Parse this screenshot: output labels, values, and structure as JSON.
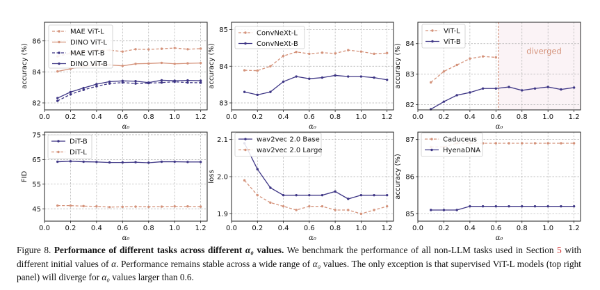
{
  "colors": {
    "orange": "#d4927a",
    "purple": "#3d3585",
    "diverged_shade": "#fbf3f6",
    "grid": "#b0b0b0"
  },
  "chart_data": [
    {
      "type": "line",
      "xlabel": "α₀",
      "ylabel": "accuracy (%)",
      "xlim": [
        0.0,
        1.25
      ],
      "ylim": [
        81.55,
        87.2
      ],
      "xticks": [
        "0.0",
        "0.2",
        "0.4",
        "0.6",
        "0.8",
        "1.0",
        "1.2"
      ],
      "yticks": [
        "82",
        "84",
        "86"
      ],
      "grid": true,
      "legend": "top-left",
      "x": [
        0.1,
        0.2,
        0.3,
        0.4,
        0.5,
        0.6,
        0.7,
        0.8,
        0.9,
        1.0,
        1.1,
        1.2
      ],
      "series": [
        {
          "name": "MAE ViT-L",
          "color": "orange",
          "style": "dashed",
          "values": [
            85.0,
            85.2,
            85.3,
            85.4,
            85.4,
            85.31,
            85.46,
            85.45,
            85.49,
            85.54,
            85.46,
            85.5
          ]
        },
        {
          "name": "DINO ViT-L",
          "color": "orange",
          "style": "solid",
          "values": [
            84.03,
            84.2,
            84.35,
            84.45,
            84.45,
            84.39,
            84.52,
            84.54,
            84.58,
            84.52,
            84.55,
            84.57
          ]
        },
        {
          "name": "MAE ViT-B",
          "color": "purple",
          "style": "dashed",
          "values": [
            82.13,
            82.55,
            82.84,
            83.07,
            83.25,
            83.31,
            83.25,
            83.27,
            83.31,
            83.36,
            83.31,
            83.3
          ]
        },
        {
          "name": "DINO ViT-B",
          "color": "purple",
          "style": "solid",
          "values": [
            82.31,
            82.7,
            82.96,
            83.21,
            83.37,
            83.42,
            83.4,
            83.31,
            83.46,
            83.43,
            83.45,
            83.43
          ]
        }
      ]
    },
    {
      "type": "line",
      "xlabel": "α₀",
      "ylabel": "accuracy (%)",
      "xlim": [
        0.0,
        1.25
      ],
      "ylim": [
        82.81,
        85.2
      ],
      "xticks": [
        "0.0",
        "0.2",
        "0.4",
        "0.6",
        "0.8",
        "1.0",
        "1.2"
      ],
      "yticks": [
        "83",
        "84",
        "85"
      ],
      "grid": true,
      "legend": "top-left",
      "x": [
        0.1,
        0.2,
        0.3,
        0.4,
        0.5,
        0.6,
        0.7,
        0.8,
        0.9,
        1.0,
        1.1,
        1.2
      ],
      "series": [
        {
          "name": "ConvNeXt-L",
          "color": "orange",
          "style": "dashed",
          "values": [
            83.89,
            83.88,
            84.0,
            84.28,
            84.39,
            84.34,
            84.37,
            84.35,
            84.44,
            84.4,
            84.34,
            84.36
          ]
        },
        {
          "name": "ConvNeXt-B",
          "color": "purple",
          "style": "solid",
          "values": [
            83.3,
            83.22,
            83.3,
            83.58,
            83.72,
            83.66,
            83.69,
            83.75,
            83.72,
            83.72,
            83.69,
            83.63
          ]
        }
      ]
    },
    {
      "type": "line",
      "xlabel": "α₀",
      "ylabel": "accuracy (%)",
      "xlim": [
        0.0,
        1.25
      ],
      "ylim": [
        81.83,
        84.7
      ],
      "xticks": [
        "0.0",
        "0.2",
        "0.4",
        "0.6",
        "0.8",
        "1.0",
        "1.2"
      ],
      "yticks": [
        "82",
        "83",
        "84"
      ],
      "grid": true,
      "legend": "top-left",
      "x": [
        0.1,
        0.2,
        0.3,
        0.4,
        0.5,
        0.6,
        0.7,
        0.8,
        0.9,
        1.0,
        1.1,
        1.2
      ],
      "series": [
        {
          "name": "ViT-L",
          "color": "orange",
          "style": "dashed",
          "values": [
            82.73,
            83.09,
            83.3,
            83.51,
            83.58,
            83.55,
            null,
            null,
            null,
            null,
            null,
            null
          ]
        },
        {
          "name": "ViT-B",
          "color": "purple",
          "style": "solid",
          "values": [
            81.85,
            82.1,
            82.31,
            82.4,
            82.53,
            82.53,
            82.58,
            82.47,
            82.53,
            82.58,
            82.5,
            82.56
          ]
        }
      ],
      "divergence": {
        "x": 0.62,
        "label": "diverged",
        "label_x": 0.97,
        "label_y": 83.75
      }
    },
    {
      "type": "line",
      "xlabel": "α₀",
      "ylabel": "FID",
      "xlim": [
        0.0,
        1.25
      ],
      "ylim": [
        40.0,
        76.1
      ],
      "xticks": [
        "0.0",
        "0.2",
        "0.4",
        "0.6",
        "0.8",
        "1.0",
        "1.2"
      ],
      "yticks": [
        "45",
        "55",
        "65",
        "75"
      ],
      "grid": true,
      "legend": "top-left",
      "x": [
        0.1,
        0.2,
        0.3,
        0.4,
        0.5,
        0.6,
        0.7,
        0.8,
        0.9,
        1.0,
        1.1,
        1.2
      ],
      "series": [
        {
          "name": "DiT-B",
          "color": "purple",
          "style": "solid",
          "values": [
            64.1,
            64.3,
            64.1,
            64.0,
            63.8,
            63.8,
            63.9,
            63.7,
            64.1,
            64.1,
            64.0,
            64.0
          ]
        },
        {
          "name": "DiT-L",
          "color": "orange",
          "style": "dashed",
          "values": [
            46.3,
            46.3,
            46.1,
            46.0,
            45.7,
            45.8,
            45.9,
            45.8,
            45.9,
            46.0,
            46.0,
            45.9
          ]
        }
      ]
    },
    {
      "type": "line",
      "xlabel": "α₀",
      "ylabel": "loss",
      "xlim": [
        0.0,
        1.25
      ],
      "ylim": [
        1.88,
        2.12
      ],
      "xticks": [
        "0.0",
        "0.2",
        "0.4",
        "0.6",
        "0.8",
        "1.0",
        "1.2"
      ],
      "yticks": [
        "1.9",
        "2.0",
        "2.1"
      ],
      "grid": true,
      "legend": "top-left",
      "x": [
        0.1,
        0.2,
        0.3,
        0.4,
        0.5,
        0.6,
        0.7,
        0.8,
        0.9,
        1.0,
        1.1,
        1.2
      ],
      "series": [
        {
          "name": "wav2vec 2.0 Base",
          "color": "purple",
          "style": "solid",
          "values": [
            2.09,
            2.02,
            1.97,
            1.95,
            1.95,
            1.95,
            1.95,
            1.96,
            1.94,
            1.95,
            1.95,
            1.95
          ]
        },
        {
          "name": "wav2vec 2.0 Large",
          "color": "orange",
          "style": "dashed",
          "values": [
            1.99,
            1.95,
            1.93,
            1.92,
            1.91,
            1.92,
            1.92,
            1.91,
            1.91,
            1.9,
            1.91,
            1.92
          ]
        }
      ]
    },
    {
      "type": "line",
      "xlabel": "α₀",
      "ylabel": "accuracy (%)",
      "xlim": [
        0.0,
        1.25
      ],
      "ylim": [
        84.8,
        87.2
      ],
      "xticks": [
        "0.0",
        "0.2",
        "0.4",
        "0.6",
        "0.8",
        "1.0",
        "1.2"
      ],
      "yticks": [
        "85",
        "86",
        "87"
      ],
      "grid": true,
      "legend": "top-left",
      "x": [
        0.1,
        0.2,
        0.3,
        0.4,
        0.5,
        0.6,
        0.7,
        0.8,
        0.9,
        1.0,
        1.1,
        1.2
      ],
      "series": [
        {
          "name": "Caduceus",
          "color": "orange",
          "style": "dashed",
          "values": [
            86.8,
            86.8,
            86.9,
            86.9,
            86.9,
            86.9,
            86.9,
            86.9,
            86.9,
            86.9,
            86.9,
            86.9
          ]
        },
        {
          "name": "HyenaDNA",
          "color": "purple",
          "style": "solid",
          "values": [
            85.1,
            85.1,
            85.1,
            85.2,
            85.2,
            85.2,
            85.2,
            85.2,
            85.2,
            85.2,
            85.2,
            85.2
          ]
        }
      ]
    }
  ],
  "caption": {
    "label": "Figure 8.",
    "title_a": "Performance of different tasks across different",
    "alpha0": "α₀",
    "alpha": "α",
    "title_b": "values.",
    "t1": "We benchmark the performance of all non-LLM tasks used in Section",
    "ref": "5",
    "t2": "with different initial values of",
    "t3": ".  Performance remains stable across a wide range of",
    "t4": "values.  The only exception is that supervised ViT-L models (top right panel) will diverge for",
    "t5": "values larger than 0.6."
  }
}
